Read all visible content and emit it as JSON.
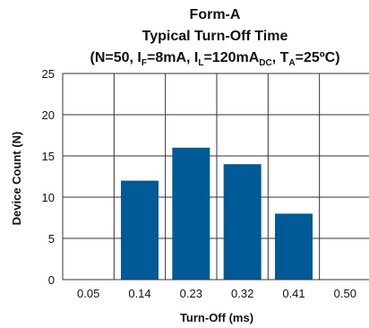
{
  "chart_data": {
    "type": "bar",
    "title": "Form-A",
    "subtitle": "Typical Turn-Off Time",
    "conditions": {
      "n": "N=50",
      "if_main": "I",
      "if_sub": "F",
      "if_val": "=8mA",
      "il_main": "I",
      "il_sub": "L",
      "il_val": "=120mA",
      "il_unit_sub": "DC",
      "ta_main": "T",
      "ta_sub": "A",
      "ta_val": "=25ºC"
    },
    "xlabel": "Turn-Off (ms)",
    "ylabel": "Device Count (N)",
    "categories": [
      "0.05",
      "0.14",
      "0.23",
      "0.32",
      "0.41",
      "0.50"
    ],
    "values": [
      0,
      12,
      16,
      14,
      8,
      0
    ],
    "ylim": [
      0,
      25
    ],
    "yticks": [
      "0",
      "5",
      "10",
      "15",
      "20",
      "25"
    ],
    "grid": true,
    "bar_color": "#005a96",
    "grid_color": "#333333"
  }
}
